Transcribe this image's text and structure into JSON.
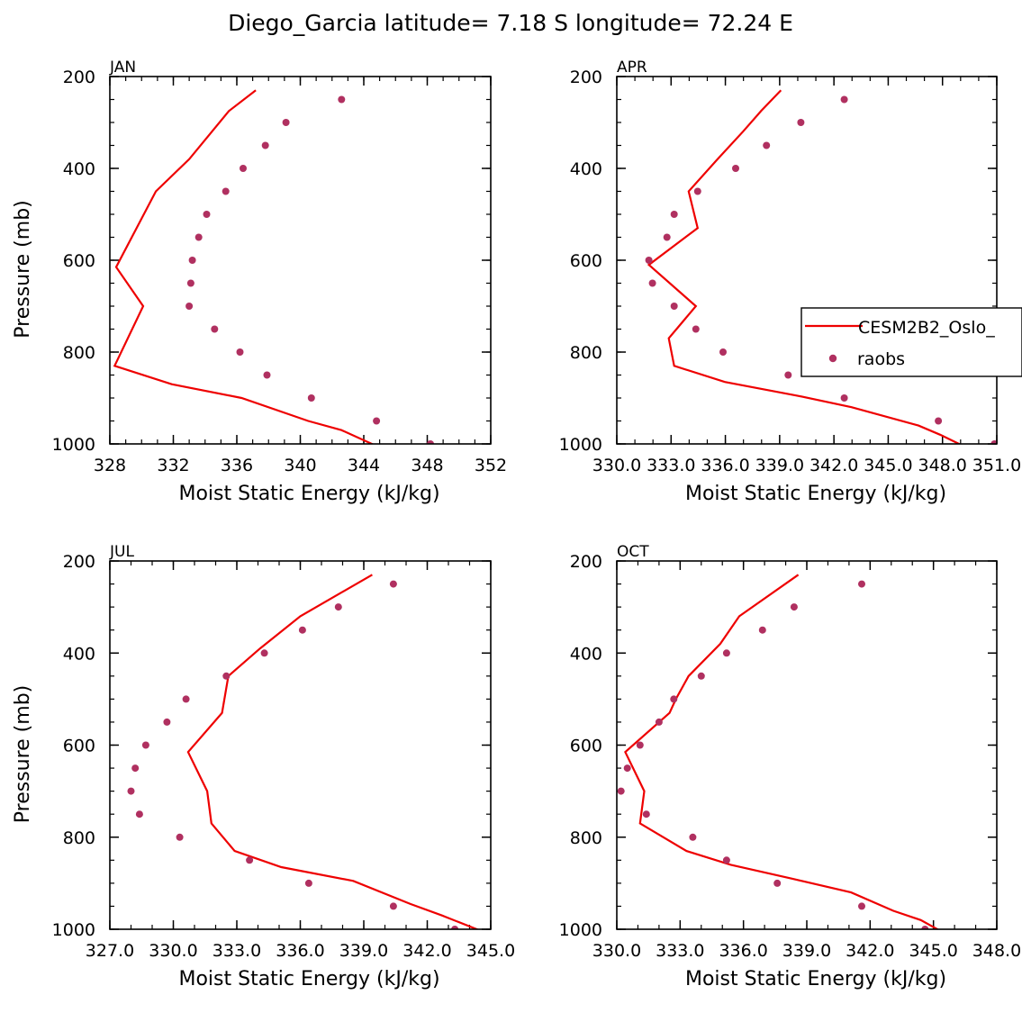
{
  "figure": {
    "title": "Diego_Garcia  latitude= 7.18 S longitude= 72.24 E"
  },
  "legend": {
    "model_label": "CESM2B2_Oslo_",
    "obs_label": "raobs"
  },
  "colors": {
    "model": "#ee0000",
    "obs": "#b03060",
    "axis": "#000000"
  },
  "chart_data": [
    {
      "type": "line",
      "panel": "JAN",
      "title": "JAN",
      "xlabel": "Moist Static Energy (kJ/kg)",
      "ylabel": "Pressure (mb)",
      "xlim": [
        328,
        352
      ],
      "ylim": [
        200,
        1000
      ],
      "y_inverted": false,
      "xticks": [
        328,
        332,
        336,
        340,
        344,
        348,
        352
      ],
      "xtick_labels": [
        "328",
        "332",
        "336",
        "340",
        "344",
        "348",
        "352"
      ],
      "xminor": 1,
      "yticks": [
        200,
        400,
        600,
        800,
        1000
      ],
      "ytick_labels": [
        "200",
        "400",
        "600",
        "800",
        "1000"
      ],
      "yminor": 50,
      "show_ylabel": true,
      "legend": false,
      "series": [
        {
          "name": "CESM2B2_Oslo_",
          "kind": "line",
          "x": [
            337.2,
            335.5,
            333.0,
            330.9,
            328.4,
            330.1,
            328.3,
            331.9,
            336.3,
            340.5,
            342.6,
            344.7
          ],
          "y": [
            230,
            275,
            380,
            450,
            615,
            700,
            830,
            870,
            900,
            950,
            970,
            1003
          ]
        },
        {
          "name": "raobs",
          "kind": "scatter",
          "x": [
            342.6,
            339.1,
            337.8,
            336.4,
            335.3,
            334.1,
            333.6,
            333.2,
            333.1,
            333.0,
            334.6,
            336.2,
            337.9,
            340.7,
            344.8,
            348.2
          ],
          "y": [
            250,
            300,
            350,
            400,
            450,
            500,
            550,
            600,
            650,
            700,
            750,
            800,
            850,
            900,
            950,
            1000
          ]
        }
      ]
    },
    {
      "type": "line",
      "panel": "APR",
      "title": "APR",
      "xlabel": "Moist Static Energy (kJ/kg)",
      "ylabel": "",
      "xlim": [
        330.03,
        351.03
      ],
      "ylim": [
        200,
        1000
      ],
      "y_inverted": false,
      "xticks": [
        330.03,
        333.03,
        336.03,
        339.03,
        342.03,
        345.03,
        348.03,
        351.03
      ],
      "xtick_labels": [
        "330.0",
        "333.0",
        "336.0",
        "339.0",
        "342.0",
        "345.0",
        "348.0",
        "351.0"
      ],
      "xminor": 1,
      "yticks": [
        200,
        400,
        600,
        800,
        1000
      ],
      "ytick_labels": [
        "200",
        "400",
        "600",
        "800",
        "1000"
      ],
      "yminor": 50,
      "show_ylabel": false,
      "legend": true,
      "series": [
        {
          "name": "CESM2B2_Oslo_",
          "kind": "line",
          "x": [
            339.1,
            338.0,
            337.0,
            335.6,
            334.0,
            334.5,
            331.8,
            334.4,
            332.9,
            333.2,
            336.0,
            340.0,
            343.0,
            346.7,
            347.9,
            349.1
          ],
          "y": [
            230,
            275,
            320,
            380,
            450,
            530,
            610,
            700,
            770,
            830,
            865,
            895,
            920,
            960,
            980,
            1003
          ]
        },
        {
          "name": "raobs",
          "kind": "scatter",
          "x": [
            342.6,
            340.2,
            338.3,
            336.6,
            334.5,
            333.2,
            332.8,
            331.8,
            332.0,
            333.2,
            334.4,
            335.9,
            339.5,
            342.6,
            347.8,
            350.9
          ],
          "y": [
            250,
            300,
            350,
            400,
            450,
            500,
            550,
            600,
            650,
            700,
            750,
            800,
            850,
            900,
            950,
            1000
          ]
        }
      ]
    },
    {
      "type": "line",
      "panel": "JUL",
      "title": "JUL",
      "xlabel": "Moist Static Energy (kJ/kg)",
      "ylabel": "Pressure (mb)",
      "xlim": [
        327.0,
        345.0
      ],
      "ylim": [
        200,
        1000
      ],
      "y_inverted": false,
      "xticks": [
        327.0,
        330.0,
        333.0,
        336.0,
        339.0,
        342.0,
        345.0
      ],
      "xtick_labels": [
        "327.0",
        "330.0",
        "333.0",
        "336.0",
        "339.0",
        "342.0",
        "345.0"
      ],
      "xminor": 1,
      "yticks": [
        200,
        400,
        600,
        800,
        1000
      ],
      "ytick_labels": [
        "200",
        "400",
        "600",
        "800",
        "1000"
      ],
      "yminor": 50,
      "show_ylabel": true,
      "legend": false,
      "series": [
        {
          "name": "CESM2B2_Oslo_",
          "kind": "line",
          "x": [
            339.4,
            336.0,
            334.1,
            332.6,
            332.3,
            330.7,
            331.6,
            331.8,
            332.9,
            335.1,
            338.5,
            341.2,
            342.7,
            344.5
          ],
          "y": [
            230,
            320,
            390,
            450,
            530,
            615,
            700,
            770,
            830,
            865,
            895,
            945,
            970,
            1003
          ]
        },
        {
          "name": "raobs",
          "kind": "scatter",
          "x": [
            340.4,
            337.8,
            336.1,
            334.3,
            332.5,
            330.6,
            329.7,
            328.7,
            328.2,
            328.0,
            328.4,
            330.3,
            333.6,
            336.4,
            340.4,
            343.3
          ],
          "y": [
            250,
            300,
            350,
            400,
            450,
            500,
            550,
            600,
            650,
            700,
            750,
            800,
            850,
            900,
            950,
            1000
          ]
        }
      ]
    },
    {
      "type": "line",
      "panel": "OCT",
      "title": "OCT",
      "xlabel": "Moist Static Energy (kJ/kg)",
      "ylabel": "",
      "xlim": [
        330.0,
        348.0
      ],
      "ylim": [
        200,
        1000
      ],
      "y_inverted": false,
      "xticks": [
        330.0,
        333.0,
        336.0,
        339.0,
        342.0,
        345.0,
        348.0
      ],
      "xtick_labels": [
        "330.0",
        "333.0",
        "336.0",
        "339.0",
        "342.0",
        "345.0",
        "348.0"
      ],
      "xminor": 1,
      "yticks": [
        200,
        400,
        600,
        800,
        1000
      ],
      "ytick_labels": [
        "200",
        "400",
        "600",
        "800",
        "1000"
      ],
      "yminor": 50,
      "show_ylabel": false,
      "legend": false,
      "series": [
        {
          "name": "CESM2B2_Oslo_",
          "kind": "line",
          "x": [
            338.6,
            335.8,
            334.9,
            333.4,
            332.8,
            332.5,
            330.4,
            331.3,
            331.1,
            333.3,
            335.4,
            338.3,
            341.1,
            343.1,
            344.4,
            345.3
          ],
          "y": [
            230,
            320,
            380,
            450,
            500,
            530,
            615,
            700,
            770,
            830,
            860,
            890,
            920,
            960,
            980,
            1003
          ]
        },
        {
          "name": "raobs",
          "kind": "scatter",
          "x": [
            341.6,
            338.4,
            336.9,
            335.2,
            334.0,
            332.7,
            332.0,
            331.1,
            330.5,
            330.2,
            331.4,
            333.6,
            335.2,
            337.6,
            341.6,
            344.6
          ],
          "y": [
            250,
            300,
            350,
            400,
            450,
            500,
            550,
            600,
            650,
            700,
            750,
            800,
            850,
            900,
            950,
            1000
          ]
        }
      ]
    }
  ]
}
